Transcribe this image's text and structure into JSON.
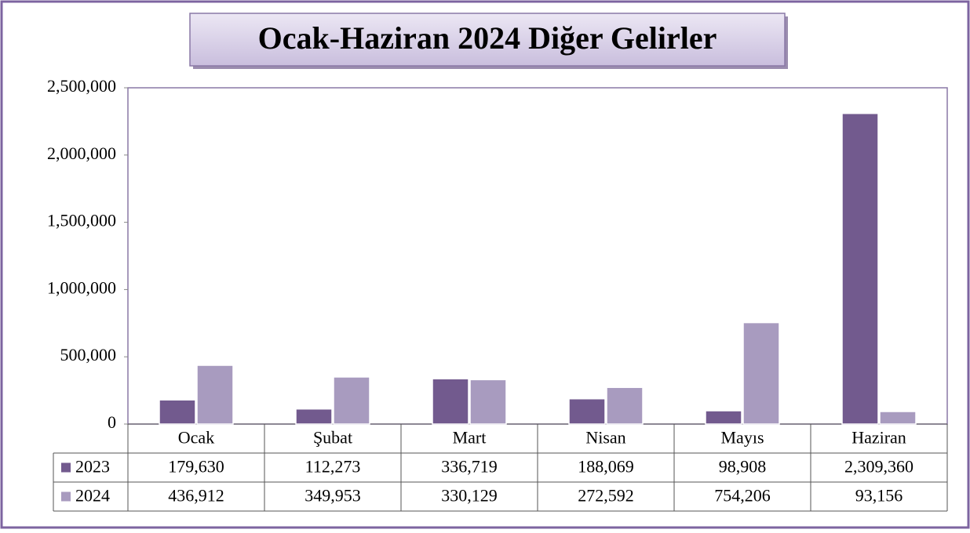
{
  "chart_data": {
    "type": "bar",
    "title": "Ocak-Haziran 2024 Diğer Gelirler",
    "categories": [
      "Ocak",
      "Şubat",
      "Mart",
      "Nisan",
      "Mayıs",
      "Haziran"
    ],
    "series": [
      {
        "name": "2023",
        "color": "#725a8e",
        "values": [
          179630,
          112273,
          336719,
          188069,
          98908,
          2309360
        ],
        "value_labels": [
          "179,630",
          "112,273",
          "336,719",
          "188,069",
          "98,908",
          "2,309,360"
        ]
      },
      {
        "name": "2024",
        "color": "#a89bbf",
        "values": [
          436912,
          349953,
          330129,
          272592,
          754206,
          93156
        ],
        "value_labels": [
          "436,912",
          "349,953",
          "330,129",
          "272,592",
          "754,206",
          "93,156"
        ]
      }
    ],
    "ylim": [
      0,
      2500000
    ],
    "yticks": [
      0,
      {
        "value": 500000,
        "label": "500,000"
      },
      {
        "value": 1000000,
        "label": "1,000,000"
      },
      {
        "value": 1500000,
        "label": "1,500,000"
      },
      {
        "value": 2000000,
        "label": "2,000,000"
      },
      {
        "value": 2500000,
        "label": "2,500,000"
      }
    ],
    "grid": false
  }
}
